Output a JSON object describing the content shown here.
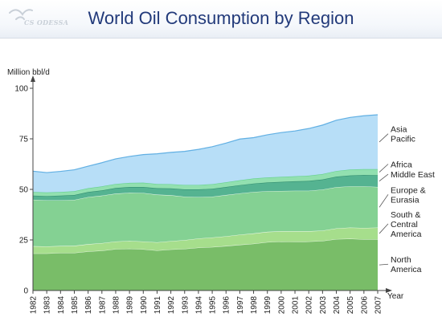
{
  "header": {
    "logo_text": "CS ODESSA",
    "title": "World Oil Consumption by Region"
  },
  "chart_data": {
    "type": "area",
    "stacked": true,
    "title": "World Oil Consumption by Region",
    "ylabel": "Million bbl/d",
    "xlabel": "Year",
    "ylim": [
      0,
      100
    ],
    "yticks": [
      0,
      25,
      50,
      75,
      100
    ],
    "grid": false,
    "legend": "right",
    "categories": [
      "1982",
      "1983",
      "1984",
      "1985",
      "1986",
      "1987",
      "1988",
      "1989",
      "1990",
      "1991",
      "1992",
      "1993",
      "1994",
      "1995",
      "1996",
      "1997",
      "1998",
      "1999",
      "2000",
      "2001",
      "2002",
      "2003",
      "2004",
      "2005",
      "2006",
      "2007"
    ],
    "series": [
      {
        "name": "North America",
        "color": "#79bd68",
        "values": [
          18.3,
          18.3,
          18.6,
          18.6,
          19.3,
          19.7,
          20.5,
          20.7,
          20.4,
          19.8,
          20.3,
          20.6,
          21.2,
          21.5,
          22.0,
          22.6,
          23.1,
          23.9,
          24.2,
          24.1,
          24.2,
          24.5,
          25.4,
          25.6,
          25.3,
          25.3
        ]
      },
      {
        "name": "South & Central America",
        "color": "#a6de8c",
        "values": [
          3.6,
          3.5,
          3.4,
          3.5,
          3.6,
          3.7,
          3.7,
          3.8,
          3.8,
          4.0,
          4.1,
          4.3,
          4.5,
          4.7,
          4.8,
          5.0,
          5.1,
          5.1,
          5.1,
          5.2,
          5.1,
          5.1,
          5.3,
          5.5,
          5.6,
          5.8
        ]
      },
      {
        "name": "Europe & Eurasia",
        "color": "#84d193",
        "values": [
          23.0,
          22.8,
          22.6,
          22.7,
          23.3,
          23.5,
          23.7,
          23.8,
          24.0,
          23.6,
          22.7,
          21.5,
          20.5,
          20.2,
          20.4,
          20.4,
          20.5,
          20.1,
          19.9,
          20.0,
          20.0,
          20.3,
          20.4,
          20.4,
          20.6,
          20.1
        ]
      },
      {
        "name": "Middle East",
        "color": "#55b391",
        "values": [
          2.0,
          2.1,
          2.3,
          2.4,
          2.5,
          2.6,
          2.8,
          2.9,
          3.0,
          3.2,
          3.4,
          3.6,
          3.8,
          3.9,
          4.0,
          4.1,
          4.2,
          4.3,
          4.5,
          4.7,
          4.9,
          5.0,
          5.2,
          5.4,
          5.6,
          5.8
        ]
      },
      {
        "name": "Africa",
        "color": "#92e0b0",
        "values": [
          1.8,
          1.8,
          1.8,
          1.9,
          1.9,
          2.0,
          2.0,
          2.0,
          2.1,
          2.1,
          2.1,
          2.2,
          2.2,
          2.3,
          2.3,
          2.4,
          2.5,
          2.5,
          2.5,
          2.5,
          2.6,
          2.7,
          2.8,
          2.9,
          2.9,
          3.0
        ]
      },
      {
        "name": "Asia Pacific",
        "color": "#b7def7",
        "values": [
          10.3,
          9.8,
          10.2,
          10.6,
          10.9,
          11.7,
          12.4,
          13.1,
          13.9,
          14.9,
          15.7,
          16.6,
          17.6,
          18.5,
          19.4,
          20.4,
          20.2,
          21.1,
          21.9,
          22.4,
          23.3,
          24.2,
          25.1,
          25.8,
          26.4,
          26.9
        ]
      }
    ]
  }
}
